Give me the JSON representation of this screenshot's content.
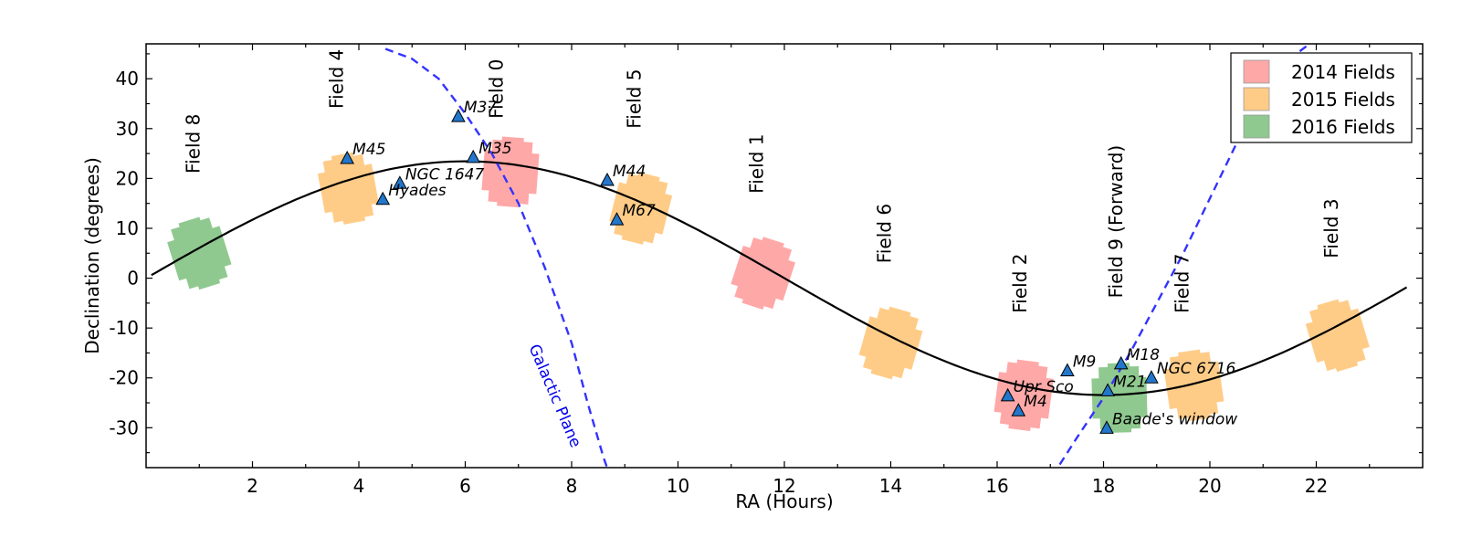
{
  "chart_data": {
    "type": "scatter",
    "title": "",
    "xlabel": "RA (Hours)",
    "ylabel": "Declination (degrees)",
    "xlim": [
      0,
      24
    ],
    "ylim": [
      -38,
      47
    ],
    "xticks": [
      2,
      4,
      6,
      8,
      10,
      12,
      14,
      16,
      18,
      20,
      22
    ],
    "xtick_labels": [
      "2",
      "4",
      "6",
      "8",
      "10",
      "12",
      "14",
      "16",
      "18",
      "20",
      "22"
    ],
    "yticks": [
      40,
      30,
      20,
      10,
      0,
      -10,
      -20,
      -30
    ],
    "ytick_labels": [
      "40",
      "30",
      "20",
      "10",
      "0",
      "-10",
      "-20",
      "-30"
    ],
    "grid": false,
    "legend_position": "top-right",
    "legend": [
      {
        "label": "2014 Fields",
        "color": "#ffa8a8"
      },
      {
        "label": "2015 Fields",
        "color": "#ffcc88"
      },
      {
        "label": "2016 Fields",
        "color": "#8fc98f"
      }
    ],
    "fields": [
      {
        "name": "Field 0",
        "year": 2014,
        "ra": 6.85,
        "dec": 21.3,
        "label_ra": 6.7,
        "label_dec": 32
      },
      {
        "name": "Field 1",
        "year": 2014,
        "ra": 11.6,
        "dec": 1.0,
        "label_ra": 11.6,
        "label_dec": 17
      },
      {
        "name": "Field 2",
        "year": 2014,
        "ra": 16.5,
        "dec": -23.5,
        "label_ra": 16.55,
        "label_dec": -7
      },
      {
        "name": "Field 3",
        "year": 2015,
        "ra": 22.4,
        "dec": -11.5,
        "label_ra": 22.4,
        "label_dec": 4
      },
      {
        "name": "Field 4",
        "year": 2015,
        "ra": 3.8,
        "dec": 18.0,
        "label_ra": 3.7,
        "label_dec": 34
      },
      {
        "name": "Field 5",
        "year": 2015,
        "ra": 9.3,
        "dec": 14.0,
        "label_ra": 9.3,
        "label_dec": 30
      },
      {
        "name": "Field 6",
        "year": 2015,
        "ra": 14.0,
        "dec": -13.0,
        "label_ra": 14.0,
        "label_dec": 3
      },
      {
        "name": "Field 7",
        "year": 2015,
        "ra": 19.7,
        "dec": -21.5,
        "label_ra": 19.6,
        "label_dec": -7
      },
      {
        "name": "Field 8",
        "year": 2016,
        "ra": 1.0,
        "dec": 5.0,
        "label_ra": 1.0,
        "label_dec": 21
      },
      {
        "name": "Field 9 (Forward)",
        "year": 2016,
        "ra": 18.3,
        "dec": -24.0,
        "label_ra": 18.35,
        "label_dec": -4
      }
    ],
    "ecliptic": {
      "amplitude_deg": 23.44,
      "color": "#000000"
    },
    "galactic_plane": {
      "label": "Galactic Plane",
      "color": "#3333ff"
    },
    "clusters": [
      {
        "name": "M45",
        "ra": 3.78,
        "dec": 24.1
      },
      {
        "name": "NGC 1647",
        "ra": 4.77,
        "dec": 19.1
      },
      {
        "name": "Hyades",
        "ra": 4.45,
        "dec": 15.9
      },
      {
        "name": "M37",
        "ra": 5.87,
        "dec": 32.5
      },
      {
        "name": "M35",
        "ra": 6.15,
        "dec": 24.3
      },
      {
        "name": "M44",
        "ra": 8.67,
        "dec": 19.7
      },
      {
        "name": "M67",
        "ra": 8.85,
        "dec": 11.8
      },
      {
        "name": "M9",
        "ra": 17.32,
        "dec": -18.5
      },
      {
        "name": "M18",
        "ra": 18.33,
        "dec": -17.1
      },
      {
        "name": "M21",
        "ra": 18.08,
        "dec": -22.5
      },
      {
        "name": "NGC 6716",
        "ra": 18.9,
        "dec": -19.9
      },
      {
        "name": "Upr Sco",
        "ra": 16.2,
        "dec": -23.5
      },
      {
        "name": "M4",
        "ra": 16.4,
        "dec": -26.5
      },
      {
        "name": "Baade's window",
        "ra": 18.06,
        "dec": -30.0
      }
    ]
  }
}
